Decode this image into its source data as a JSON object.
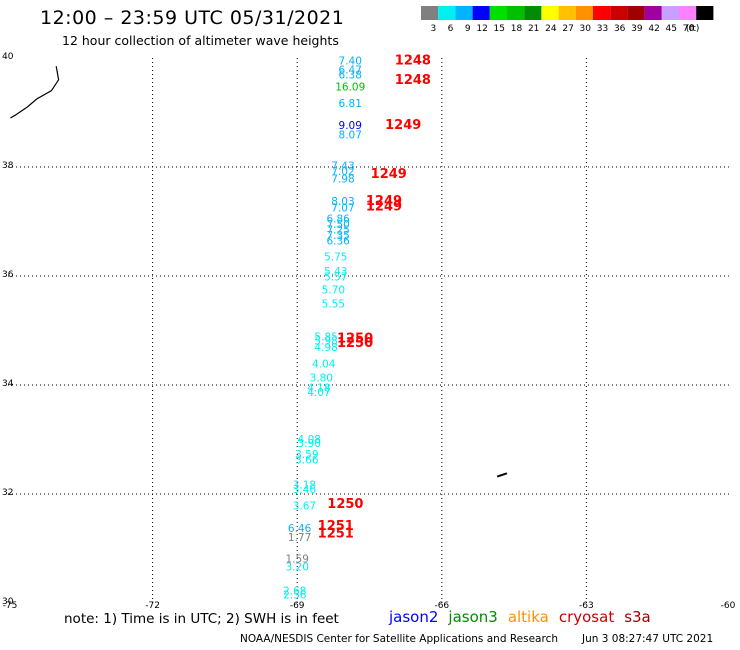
{
  "title": "12:00 – 23:59 UTC 05/31/2021",
  "subtitle": "12 hour collection of altimeter wave heights",
  "colorbar": {
    "unit": "(ft)",
    "bins": [
      {
        "label": "3",
        "color": "#808080"
      },
      {
        "label": "6",
        "color": "#00f0f0"
      },
      {
        "label": "9",
        "color": "#00b4ff"
      },
      {
        "label": "12",
        "color": "#0000ff"
      },
      {
        "label": "15",
        "color": "#00e000"
      },
      {
        "label": "18",
        "color": "#00c000"
      },
      {
        "label": "21",
        "color": "#008c00"
      },
      {
        "label": "24",
        "color": "#ffff00"
      },
      {
        "label": "27",
        "color": "#ffc000"
      },
      {
        "label": "30",
        "color": "#ff9000"
      },
      {
        "label": "33",
        "color": "#ff0000"
      },
      {
        "label": "36",
        "color": "#cc0000"
      },
      {
        "label": "39",
        "color": "#a00000"
      },
      {
        "label": "42",
        "color": "#a000a0"
      },
      {
        "label": "45",
        "color": "#c8a0ff"
      },
      {
        "label": "70",
        "color": "#ff80ff"
      },
      {
        "label": "",
        "color": "#000000"
      }
    ]
  },
  "map_data": {
    "lon_range": [
      -75,
      -60
    ],
    "lat_range": [
      30,
      40
    ],
    "lon_ticks": [
      {
        "value": -75,
        "label": "-75"
      },
      {
        "value": -72,
        "label": "-72"
      },
      {
        "value": -69,
        "label": "-69"
      },
      {
        "value": -66,
        "label": "-66"
      },
      {
        "value": -63,
        "label": "-63"
      },
      {
        "value": -60,
        "label": "-60"
      }
    ],
    "lat_ticks": [
      {
        "value": 40,
        "label": "40"
      },
      {
        "value": 38,
        "label": "38"
      },
      {
        "value": 36,
        "label": "36"
      },
      {
        "value": 34,
        "label": "34"
      },
      {
        "value": 32,
        "label": "32"
      },
      {
        "value": 30,
        "label": "30"
      }
    ],
    "gridlines": "dotted",
    "coastline": {
      "mainland": [
        [
          -74.0,
          39.85
        ],
        [
          -73.95,
          39.6
        ],
        [
          -74.1,
          39.4
        ],
        [
          -74.4,
          39.25
        ],
        [
          -74.6,
          39.1
        ],
        [
          -74.85,
          38.95
        ],
        [
          -74.95,
          38.9
        ]
      ],
      "island": [
        [
          -64.85,
          32.32
        ],
        [
          -64.65,
          32.38
        ]
      ]
    },
    "sats": [
      {
        "name": "jason2",
        "color": "#0000ff"
      },
      {
        "name": "jason3",
        "color": "#008c00"
      },
      {
        "name": "altika",
        "color": "#ff9000"
      },
      {
        "name": "cryosat",
        "color": "#cc0000"
      },
      {
        "name": "s3a",
        "color": "#a00000"
      }
    ],
    "swh": [
      {
        "lon": -67.9,
        "lat": 39.88,
        "text": "7.40",
        "color": "#00b4ff"
      },
      {
        "lon": -67.9,
        "lat": 39.72,
        "text": "6.47",
        "color": "#00b4ff"
      },
      {
        "lon": -67.9,
        "lat": 39.62,
        "text": "6.38",
        "color": "#00b4ff"
      },
      {
        "lon": -67.9,
        "lat": 39.4,
        "text": "16.09",
        "color": "#00c000"
      },
      {
        "lon": -67.9,
        "lat": 39.1,
        "text": "6.81",
        "color": "#00b4ff"
      },
      {
        "lon": -67.9,
        "lat": 38.7,
        "text": "9.09",
        "color": "#0000ff"
      },
      {
        "lon": -67.9,
        "lat": 38.52,
        "text": "8.07",
        "color": "#00b4ff"
      },
      {
        "lon": -68.05,
        "lat": 37.95,
        "text": "7.43",
        "color": "#00b4ff"
      },
      {
        "lon": -68.05,
        "lat": 37.85,
        "text": "7.02",
        "color": "#00b4ff"
      },
      {
        "lon": -68.05,
        "lat": 37.72,
        "text": "7.98",
        "color": "#00b4ff"
      },
      {
        "lon": -68.05,
        "lat": 37.3,
        "text": "8.03",
        "color": "#00b4ff"
      },
      {
        "lon": -68.05,
        "lat": 37.18,
        "text": "7.07",
        "color": "#00b4ff"
      },
      {
        "lon": -68.15,
        "lat": 36.98,
        "text": "6.86",
        "color": "#00b4ff"
      },
      {
        "lon": -68.15,
        "lat": 36.88,
        "text": "7.50",
        "color": "#00b4ff"
      },
      {
        "lon": -68.15,
        "lat": 36.78,
        "text": "7.25",
        "color": "#00b4ff"
      },
      {
        "lon": -68.15,
        "lat": 36.68,
        "text": "7.35",
        "color": "#00b4ff"
      },
      {
        "lon": -68.15,
        "lat": 36.58,
        "text": "6.36",
        "color": "#00b4ff"
      },
      {
        "lon": -68.2,
        "lat": 36.28,
        "text": "5.75",
        "color": "#00f0f0"
      },
      {
        "lon": -68.2,
        "lat": 36.02,
        "text": "5.43",
        "color": "#00f0f0"
      },
      {
        "lon": -68.2,
        "lat": 35.92,
        "text": "5.57",
        "color": "#00f0f0"
      },
      {
        "lon": -68.25,
        "lat": 35.68,
        "text": "5.70",
        "color": "#00f0f0"
      },
      {
        "lon": -68.25,
        "lat": 35.42,
        "text": "5.55",
        "color": "#00f0f0"
      },
      {
        "lon": -68.4,
        "lat": 34.82,
        "text": "5.85",
        "color": "#00f0f0"
      },
      {
        "lon": -68.4,
        "lat": 34.74,
        "text": "5.98",
        "color": "#00f0f0"
      },
      {
        "lon": -68.4,
        "lat": 34.62,
        "text": "4.98",
        "color": "#00f0f0"
      },
      {
        "lon": -68.45,
        "lat": 34.32,
        "text": "4.04",
        "color": "#00f0f0"
      },
      {
        "lon": -68.5,
        "lat": 34.06,
        "text": "3.80",
        "color": "#00f0f0"
      },
      {
        "lon": -68.55,
        "lat": 33.88,
        "text": "4.18",
        "color": "#00f0f0"
      },
      {
        "lon": -68.55,
        "lat": 33.8,
        "text": "4.07",
        "color": "#00f0f0"
      },
      {
        "lon": -68.75,
        "lat": 32.94,
        "text": "4.08",
        "color": "#00f0f0"
      },
      {
        "lon": -68.75,
        "lat": 32.86,
        "text": "3.90",
        "color": "#00f0f0"
      },
      {
        "lon": -68.8,
        "lat": 32.66,
        "text": "3.59",
        "color": "#00f0f0"
      },
      {
        "lon": -68.8,
        "lat": 32.56,
        "text": "3.66",
        "color": "#00f0f0"
      },
      {
        "lon": -68.85,
        "lat": 32.1,
        "text": "3.18",
        "color": "#00f0f0"
      },
      {
        "lon": -68.85,
        "lat": 32.02,
        "text": "3.46",
        "color": "#00f0f0"
      },
      {
        "lon": -68.85,
        "lat": 31.72,
        "text": "3.67",
        "color": "#00f0f0"
      },
      {
        "lon": -68.95,
        "lat": 31.3,
        "text": "6.46",
        "color": "#00b4ff"
      },
      {
        "lon": -68.95,
        "lat": 31.14,
        "text": "1.77",
        "color": "#808080"
      },
      {
        "lon": -69.0,
        "lat": 30.74,
        "text": "1.59",
        "color": "#808080"
      },
      {
        "lon": -69.0,
        "lat": 30.6,
        "text": "3.20",
        "color": "#00f0f0"
      },
      {
        "lon": -69.05,
        "lat": 30.16,
        "text": "2.68",
        "color": "#00f0f0"
      },
      {
        "lon": -69.05,
        "lat": 30.08,
        "text": "2.56",
        "color": "#00f0f0"
      }
    ],
    "times": [
      {
        "lon": -66.6,
        "lat": 39.88,
        "text": "1248",
        "color": "#ff0000"
      },
      {
        "lon": -66.6,
        "lat": 39.52,
        "text": "1248",
        "color": "#ff0000"
      },
      {
        "lon": -66.8,
        "lat": 38.7,
        "text": "1249",
        "color": "#ff0000"
      },
      {
        "lon": -67.1,
        "lat": 37.8,
        "text": "1249",
        "color": "#ff0000"
      },
      {
        "lon": -67.2,
        "lat": 37.3,
        "text": "1249",
        "color": "#ff0000"
      },
      {
        "lon": -67.2,
        "lat": 37.2,
        "text": "1249",
        "color": "#ff0000"
      },
      {
        "lon": -67.8,
        "lat": 34.78,
        "text": "1250",
        "color": "#ff0000"
      },
      {
        "lon": -67.8,
        "lat": 34.7,
        "text": "1250",
        "color": "#ff0000"
      },
      {
        "lon": -68.0,
        "lat": 31.74,
        "text": "1250",
        "color": "#ff0000"
      },
      {
        "lon": -68.2,
        "lat": 31.34,
        "text": "1251",
        "color": "#ff0000"
      },
      {
        "lon": -68.2,
        "lat": 31.2,
        "text": "1251",
        "color": "#ff0000"
      }
    ]
  },
  "note": "note:  1) Time is in UTC;  2) SWH is in feet",
  "credit": "NOAA/NESDIS Center for Satellite Applications and Research",
  "credit_time": "Jun  3 08:27:47 UTC 2021"
}
